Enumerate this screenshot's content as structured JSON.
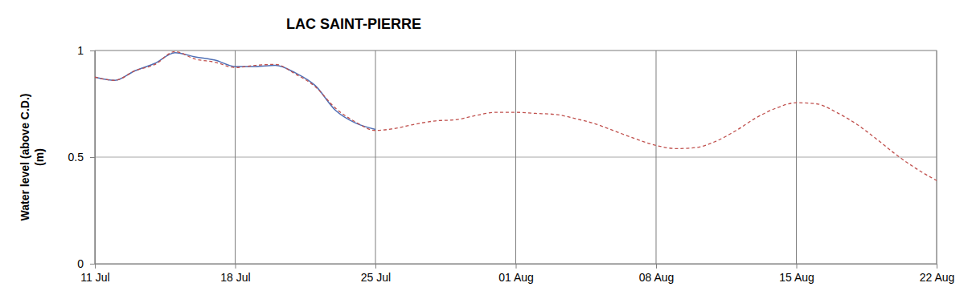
{
  "chart_data": {
    "type": "line",
    "title": "LAC SAINT-PIERRE",
    "y_label": [
      "Water level (above C.D.)",
      "(m)"
    ],
    "categories": [
      "11 Jul",
      null,
      null,
      null,
      null,
      null,
      null,
      "18 Jul",
      null,
      null,
      null,
      null,
      null,
      null,
      "25 Jul",
      null,
      null,
      null,
      null,
      null,
      null,
      "01 Aug",
      null,
      null,
      null,
      null,
      null,
      null,
      "08 Aug",
      null,
      null,
      null,
      null,
      null,
      null,
      "15 Aug",
      null,
      null,
      null,
      null,
      null,
      null,
      "22 Aug"
    ],
    "series": [
      {
        "color": "#4f6fb5",
        "line_style": "solid",
        "values": [
          0.875,
          0.86,
          0.905,
          0.94,
          0.99,
          0.97,
          0.955,
          0.925,
          0.925,
          0.93,
          0.895,
          0.835,
          0.72,
          0.66,
          0.63,
          null,
          null,
          null,
          null,
          null,
          null,
          null,
          null,
          null,
          null,
          null,
          null,
          null,
          null,
          null,
          null,
          null,
          null,
          null,
          null,
          null,
          null,
          null,
          null,
          null,
          null,
          null,
          null
        ]
      },
      {
        "color": "#c0504d",
        "line_style": "dashed",
        "values": [
          0.875,
          0.86,
          0.905,
          0.935,
          0.995,
          0.96,
          0.945,
          0.92,
          0.93,
          0.935,
          0.89,
          0.83,
          0.73,
          0.665,
          0.625,
          0.635,
          0.655,
          0.67,
          0.675,
          0.695,
          0.71,
          0.71,
          0.705,
          0.7,
          0.68,
          0.655,
          0.62,
          0.585,
          0.555,
          0.54,
          0.545,
          0.575,
          0.625,
          0.685,
          0.73,
          0.755,
          0.75,
          0.71,
          0.655,
          0.585,
          0.51,
          0.445,
          0.39
        ]
      }
    ],
    "ylim": [
      0,
      1
    ],
    "yticks": [
      0,
      0.5,
      1
    ],
    "grid": true
  }
}
